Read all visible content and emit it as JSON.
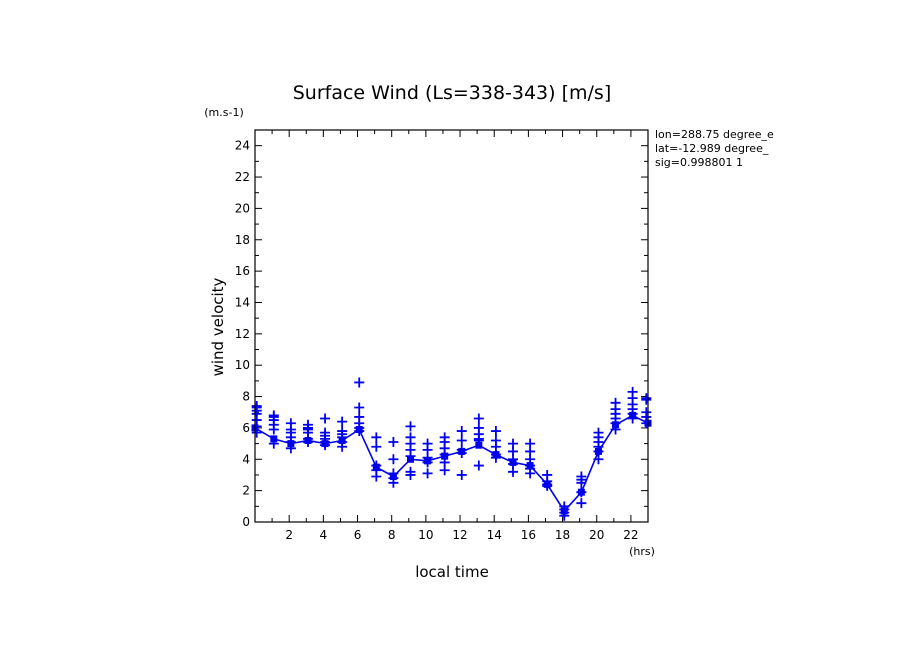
{
  "chart_data": {
    "type": "scatter",
    "title": "Surface Wind  (Ls=338-343) [m/s]",
    "ylabel": "wind velocity",
    "yunit": "(m.s-1)",
    "xlabel": "local time",
    "xunit": "(hrs)",
    "xlim": [
      0,
      23
    ],
    "ylim": [
      0,
      25
    ],
    "xticks": [
      2,
      4,
      6,
      8,
      10,
      12,
      14,
      16,
      18,
      20,
      22
    ],
    "yticks": [
      0,
      2,
      4,
      6,
      8,
      10,
      12,
      14,
      16,
      18,
      20,
      22,
      24
    ],
    "info": [
      "lon=288.75 degree_e",
      "lat=-12.989 degree_",
      "sig=0.998801 1"
    ],
    "color": "#0000ee",
    "mean_line": {
      "x": [
        0,
        1.1,
        2.1,
        3.1,
        4.1,
        5.1,
        6.1,
        7.1,
        8.1,
        9.1,
        10.1,
        11.1,
        12.1,
        13.1,
        14.1,
        15.1,
        16.1,
        17.1,
        18.1,
        19.1,
        20.1,
        21.1,
        22.1,
        23
      ],
      "y": [
        6.0,
        5.3,
        5.0,
        5.2,
        5.0,
        5.2,
        5.9,
        3.5,
        2.9,
        4.0,
        3.9,
        4.2,
        4.5,
        4.9,
        4.3,
        3.8,
        3.6,
        2.4,
        0.7,
        1.9,
        4.5,
        6.2,
        6.8,
        6.3
      ],
      "markers": true
    },
    "series": [
      {
        "x": [
          0.1,
          0.1,
          0.1,
          0.1,
          0.1,
          0.1,
          0.1
        ],
        "y": [
          5.7,
          6.1,
          6.5,
          6.9,
          7.1,
          7.3,
          7.4
        ]
      },
      {
        "x": [
          1.1,
          1.1,
          1.1,
          1.1,
          1.1,
          1.1
        ],
        "y": [
          5.0,
          5.9,
          6.2,
          6.5,
          6.7,
          6.8
        ]
      },
      {
        "x": [
          2.1,
          2.1,
          2.1,
          2.1,
          2.1,
          2.1
        ],
        "y": [
          4.7,
          5.1,
          5.4,
          5.7,
          5.9,
          6.3
        ]
      },
      {
        "x": [
          3.1,
          3.1,
          3.1,
          3.1,
          3.1,
          3.1
        ],
        "y": [
          5.1,
          5.3,
          5.7,
          5.9,
          6.0,
          6.2
        ]
      },
      {
        "x": [
          4.1,
          4.1,
          4.1,
          4.1,
          4.1,
          4.1
        ],
        "y": [
          4.9,
          5.1,
          5.3,
          5.5,
          5.7,
          6.6
        ]
      },
      {
        "x": [
          5.1,
          5.1,
          5.1,
          5.1,
          5.1,
          5.1
        ],
        "y": [
          4.8,
          5.1,
          5.4,
          5.6,
          5.8,
          6.4
        ]
      },
      {
        "x": [
          6.1,
          6.1,
          6.1,
          6.1,
          6.1,
          6.1
        ],
        "y": [
          5.8,
          6.0,
          6.3,
          6.7,
          7.3,
          8.9
        ]
      },
      {
        "x": [
          7.1,
          7.1,
          7.1,
          7.1,
          7.1
        ],
        "y": [
          2.9,
          3.3,
          3.6,
          4.8,
          5.4
        ]
      },
      {
        "x": [
          8.1,
          8.1,
          8.1,
          8.1,
          8.1
        ],
        "y": [
          2.5,
          2.8,
          3.1,
          4.0,
          5.1
        ]
      },
      {
        "x": [
          9.1,
          9.1,
          9.1,
          9.1,
          9.1,
          9.1,
          9.1
        ],
        "y": [
          3.0,
          3.2,
          4.2,
          4.6,
          5.0,
          5.4,
          6.1
        ]
      },
      {
        "x": [
          10.1,
          10.1,
          10.1,
          10.1,
          10.1
        ],
        "y": [
          3.1,
          3.8,
          4.1,
          4.6,
          5.0
        ]
      },
      {
        "x": [
          11.1,
          11.1,
          11.1,
          11.1,
          11.1,
          11.1
        ],
        "y": [
          3.3,
          3.8,
          4.3,
          4.7,
          5.1,
          5.4
        ]
      },
      {
        "x": [
          12.1,
          12.1,
          12.1,
          12.1,
          12.1
        ],
        "y": [
          3.0,
          4.4,
          4.6,
          5.2,
          5.8
        ]
      },
      {
        "x": [
          13.1,
          13.1,
          13.1,
          13.1,
          13.1,
          13.1
        ],
        "y": [
          3.6,
          5.2,
          5.3,
          5.6,
          6.0,
          6.6
        ]
      },
      {
        "x": [
          14.1,
          14.1,
          14.1,
          14.1,
          14.1
        ],
        "y": [
          4.1,
          4.3,
          4.8,
          5.2,
          5.8
        ]
      },
      {
        "x": [
          15.1,
          15.1,
          15.1,
          15.1,
          15.1
        ],
        "y": [
          3.2,
          3.7,
          4.0,
          4.5,
          5.0
        ]
      },
      {
        "x": [
          16.1,
          16.1,
          16.1,
          16.1,
          16.1,
          16.1
        ],
        "y": [
          3.1,
          3.4,
          3.6,
          4.0,
          4.5,
          5.0
        ]
      },
      {
        "x": [
          17.1,
          17.1,
          17.1,
          17.1
        ],
        "y": [
          2.3,
          2.4,
          2.6,
          3.0
        ]
      },
      {
        "x": [
          18.1,
          18.1,
          18.1,
          18.1
        ],
        "y": [
          0.4,
          0.6,
          0.8,
          1.0
        ]
      },
      {
        "x": [
          19.1,
          19.1,
          19.1,
          19.1,
          19.1
        ],
        "y": [
          1.2,
          1.9,
          2.5,
          2.7,
          2.9
        ]
      },
      {
        "x": [
          20.1,
          20.1,
          20.1,
          20.1,
          20.1,
          20.1
        ],
        "y": [
          4.0,
          4.5,
          4.8,
          5.1,
          5.4,
          5.7
        ]
      },
      {
        "x": [
          21.1,
          21.1,
          21.1,
          21.1,
          21.1,
          21.1
        ],
        "y": [
          5.9,
          6.3,
          6.6,
          6.9,
          7.2,
          7.6
        ]
      },
      {
        "x": [
          22.1,
          22.1,
          22.1,
          22.1,
          22.1,
          22.1
        ],
        "y": [
          6.6,
          6.9,
          7.2,
          7.5,
          7.9,
          8.3
        ]
      },
      {
        "x": [
          22.9,
          22.9,
          22.9,
          22.9,
          22.9
        ],
        "y": [
          6.3,
          6.7,
          7.0,
          7.8,
          7.9
        ]
      }
    ]
  }
}
